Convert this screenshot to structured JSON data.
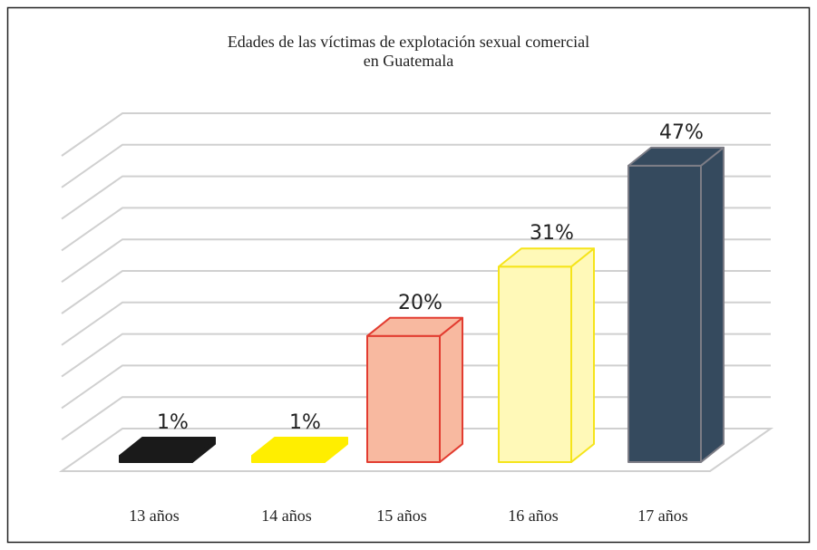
{
  "chart_data": {
    "type": "bar3d",
    "title": "Edades de las víctimas de explotación sexual comercial\nen Guatemala",
    "categories": [
      "13 años",
      "14 años",
      "15 años",
      "16 años",
      "17 años"
    ],
    "values": [
      1,
      1,
      20,
      31,
      47
    ],
    "value_labels": [
      "1%",
      "1%",
      "20%",
      "31%",
      "47%"
    ],
    "colors": [
      "#1a1a1a",
      "#ffee00",
      "#f8b9a0",
      "#fff9b8",
      "#354a5e"
    ],
    "edge_colors": [
      "#1a1a1a",
      "#ffee00",
      "#e23c30",
      "#f5e41a",
      "#7d7d86"
    ],
    "ylim": [
      0,
      50
    ],
    "yticks": [
      0,
      5,
      10,
      15,
      20,
      25,
      30,
      35,
      40,
      45,
      50
    ],
    "grid": true
  }
}
